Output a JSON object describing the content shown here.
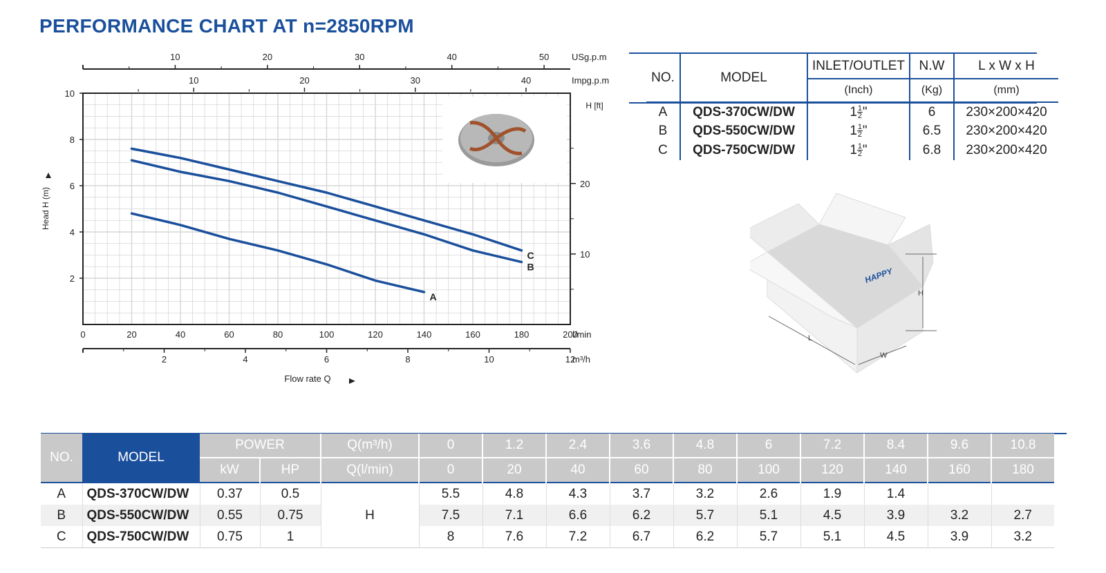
{
  "title": "PERFORMANCE CHART AT n=2850RPM",
  "chart_data": {
    "type": "line",
    "x": [
      0,
      20,
      40,
      60,
      80,
      100,
      120,
      140,
      160,
      180
    ],
    "xlim": [
      0,
      200
    ],
    "ylim": [
      0,
      10
    ],
    "xlabel": "Flow rate Q",
    "ylabel": "Head H (m)",
    "x_ticks": [
      "0",
      "20",
      "40",
      "60",
      "80",
      "100",
      "120",
      "140",
      "160",
      "180",
      "200"
    ],
    "x_unit": "l/min",
    "y_ticks": [
      "2",
      "4",
      "6",
      "8",
      "10"
    ],
    "m3h_ticks": [
      "2",
      "4",
      "6",
      "8",
      "10",
      "12"
    ],
    "m3h_unit": "m³/h",
    "usgpm_ticks": [
      "10",
      "20",
      "30",
      "40",
      "50"
    ],
    "usgpm_unit": "USg.p.m",
    "impgpm_ticks": [
      "10",
      "20",
      "30",
      "40"
    ],
    "impgpm_unit": "Impg.p.m",
    "ft_label": "H [ft]",
    "ft_ticks": [
      "10",
      "20"
    ],
    "grid": true,
    "series": [
      {
        "name": "A",
        "x": [
          20,
          40,
          60,
          80,
          100,
          120,
          140
        ],
        "values": [
          4.8,
          4.3,
          3.7,
          3.2,
          2.6,
          1.9,
          1.4
        ]
      },
      {
        "name": "B",
        "x": [
          20,
          40,
          60,
          80,
          100,
          120,
          140,
          160,
          180
        ],
        "values": [
          7.1,
          6.6,
          6.2,
          5.7,
          5.1,
          4.5,
          3.9,
          3.2,
          2.7
        ]
      },
      {
        "name": "C",
        "x": [
          20,
          40,
          60,
          80,
          100,
          120,
          140,
          160,
          180
        ],
        "values": [
          7.6,
          7.2,
          6.7,
          6.2,
          5.7,
          5.1,
          4.5,
          3.9,
          3.2
        ]
      }
    ],
    "colors": {
      "curve": "#1a4f9c",
      "grid": "#d6d6d6",
      "axis": "#222222"
    }
  },
  "spec_table": {
    "headers": {
      "no": "NO.",
      "model": "MODEL",
      "inlet": "INLET/OUTLET",
      "nw": "N.W",
      "dims": "L x W x H"
    },
    "units": {
      "inlet": "(Inch)",
      "nw": "(Kg)",
      "dims": "(mm)"
    },
    "rows": [
      {
        "no": "A",
        "model": "QDS-370CW/DW",
        "inlet_whole": "1",
        "inlet_num": "1",
        "inlet_den": "2",
        "inlet_mark": "\"",
        "nw": "6",
        "dims": "230×200×420"
      },
      {
        "no": "B",
        "model": "QDS-550CW/DW",
        "inlet_whole": "1",
        "inlet_num": "1",
        "inlet_den": "2",
        "inlet_mark": "\"",
        "nw": "6.5",
        "dims": "230×200×420"
      },
      {
        "no": "C",
        "model": "QDS-750CW/DW",
        "inlet_whole": "1",
        "inlet_num": "1",
        "inlet_den": "2",
        "inlet_mark": "\"",
        "nw": "6.8",
        "dims": "230×200×420"
      }
    ]
  },
  "box": {
    "brand": "HAPPY",
    "label_l": "L",
    "label_w": "W",
    "label_h": "H"
  },
  "data_table": {
    "no_label": "NO.",
    "model_label": "MODEL",
    "power_label": "POWER",
    "kw_label": "kW",
    "hp_label": "HP",
    "q_m3h_label": "Q(m³/h)",
    "q_lmin_label": "Q(l/min)",
    "h_label": "H",
    "q_m3h": [
      "0",
      "1.2",
      "2.4",
      "3.6",
      "4.8",
      "6",
      "7.2",
      "8.4",
      "9.6",
      "10.8"
    ],
    "q_lmin": [
      "0",
      "20",
      "40",
      "60",
      "80",
      "100",
      "120",
      "140",
      "160",
      "180"
    ],
    "rows": [
      {
        "no": "A",
        "model": "QDS-370CW/DW",
        "kw": "0.37",
        "hp": "0.5",
        "h": [
          "5.5",
          "4.8",
          "4.3",
          "3.7",
          "3.2",
          "2.6",
          "1.9",
          "1.4",
          "",
          ""
        ]
      },
      {
        "no": "B",
        "model": "QDS-550CW/DW",
        "kw": "0.55",
        "hp": "0.75",
        "h": [
          "7.5",
          "7.1",
          "6.6",
          "6.2",
          "5.7",
          "5.1",
          "4.5",
          "3.9",
          "3.2",
          "2.7"
        ]
      },
      {
        "no": "C",
        "model": "QDS-750CW/DW",
        "kw": "0.75",
        "hp": "1",
        "h": [
          "8",
          "7.6",
          "7.2",
          "6.7",
          "6.2",
          "5.7",
          "5.1",
          "4.5",
          "3.9",
          "3.2"
        ]
      }
    ]
  }
}
